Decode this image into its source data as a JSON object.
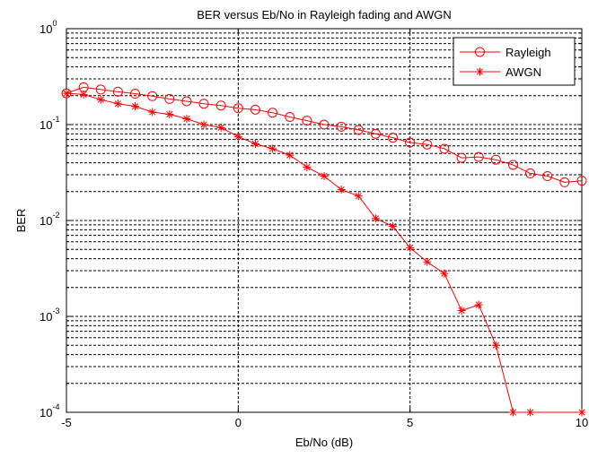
{
  "chart_data": {
    "type": "line",
    "title": "BER versus Eb/No in Rayleigh fading and AWGN",
    "xlabel": "Eb/No (dB)",
    "ylabel": "BER",
    "xlim": [
      -5,
      10
    ],
    "ylim": [
      0.0001,
      1
    ],
    "yscale": "log",
    "grid": true,
    "legend_position": "top-right",
    "x_ticks": [
      "-5",
      "0",
      "5",
      "10"
    ],
    "y_ticks": [
      {
        "base": "10",
        "exp": "-4"
      },
      {
        "base": "10",
        "exp": "-3"
      },
      {
        "base": "10",
        "exp": "-2"
      },
      {
        "base": "10",
        "exp": "-1"
      },
      {
        "base": "10",
        "exp": "0"
      }
    ],
    "x": [
      -5,
      -4.5,
      -4,
      -3.5,
      -3,
      -2.5,
      -2,
      -1.5,
      -1,
      -0.5,
      0,
      0.5,
      1,
      1.5,
      2,
      2.5,
      3,
      3.5,
      4,
      4.5,
      5,
      5.5,
      6,
      6.5,
      7,
      7.5,
      8,
      8.5,
      9,
      9.5,
      10
    ],
    "series": [
      {
        "name": "Rayleigh",
        "marker": "circle",
        "color": "#ff0000",
        "values": [
          0.212,
          0.245,
          0.232,
          0.22,
          0.21,
          0.198,
          0.185,
          0.175,
          0.165,
          0.158,
          0.148,
          0.143,
          0.133,
          0.12,
          0.11,
          0.1,
          0.095,
          0.088,
          0.08,
          0.073,
          0.065,
          0.062,
          0.056,
          0.045,
          0.046,
          0.043,
          0.038,
          0.031,
          0.029,
          0.025,
          0.026
        ]
      },
      {
        "name": "AWGN",
        "marker": "star",
        "color": "#ff0000",
        "values": [
          0.212,
          0.206,
          0.182,
          0.165,
          0.155,
          0.135,
          0.128,
          0.115,
          0.1,
          0.093,
          0.075,
          0.063,
          0.056,
          0.048,
          0.036,
          0.029,
          0.021,
          0.018,
          0.0105,
          0.0087,
          0.0052,
          0.0037,
          0.0028,
          0.00115,
          0.00132,
          0.0005,
          0.0001,
          0.0001,
          null,
          null,
          0.0001
        ]
      }
    ]
  }
}
